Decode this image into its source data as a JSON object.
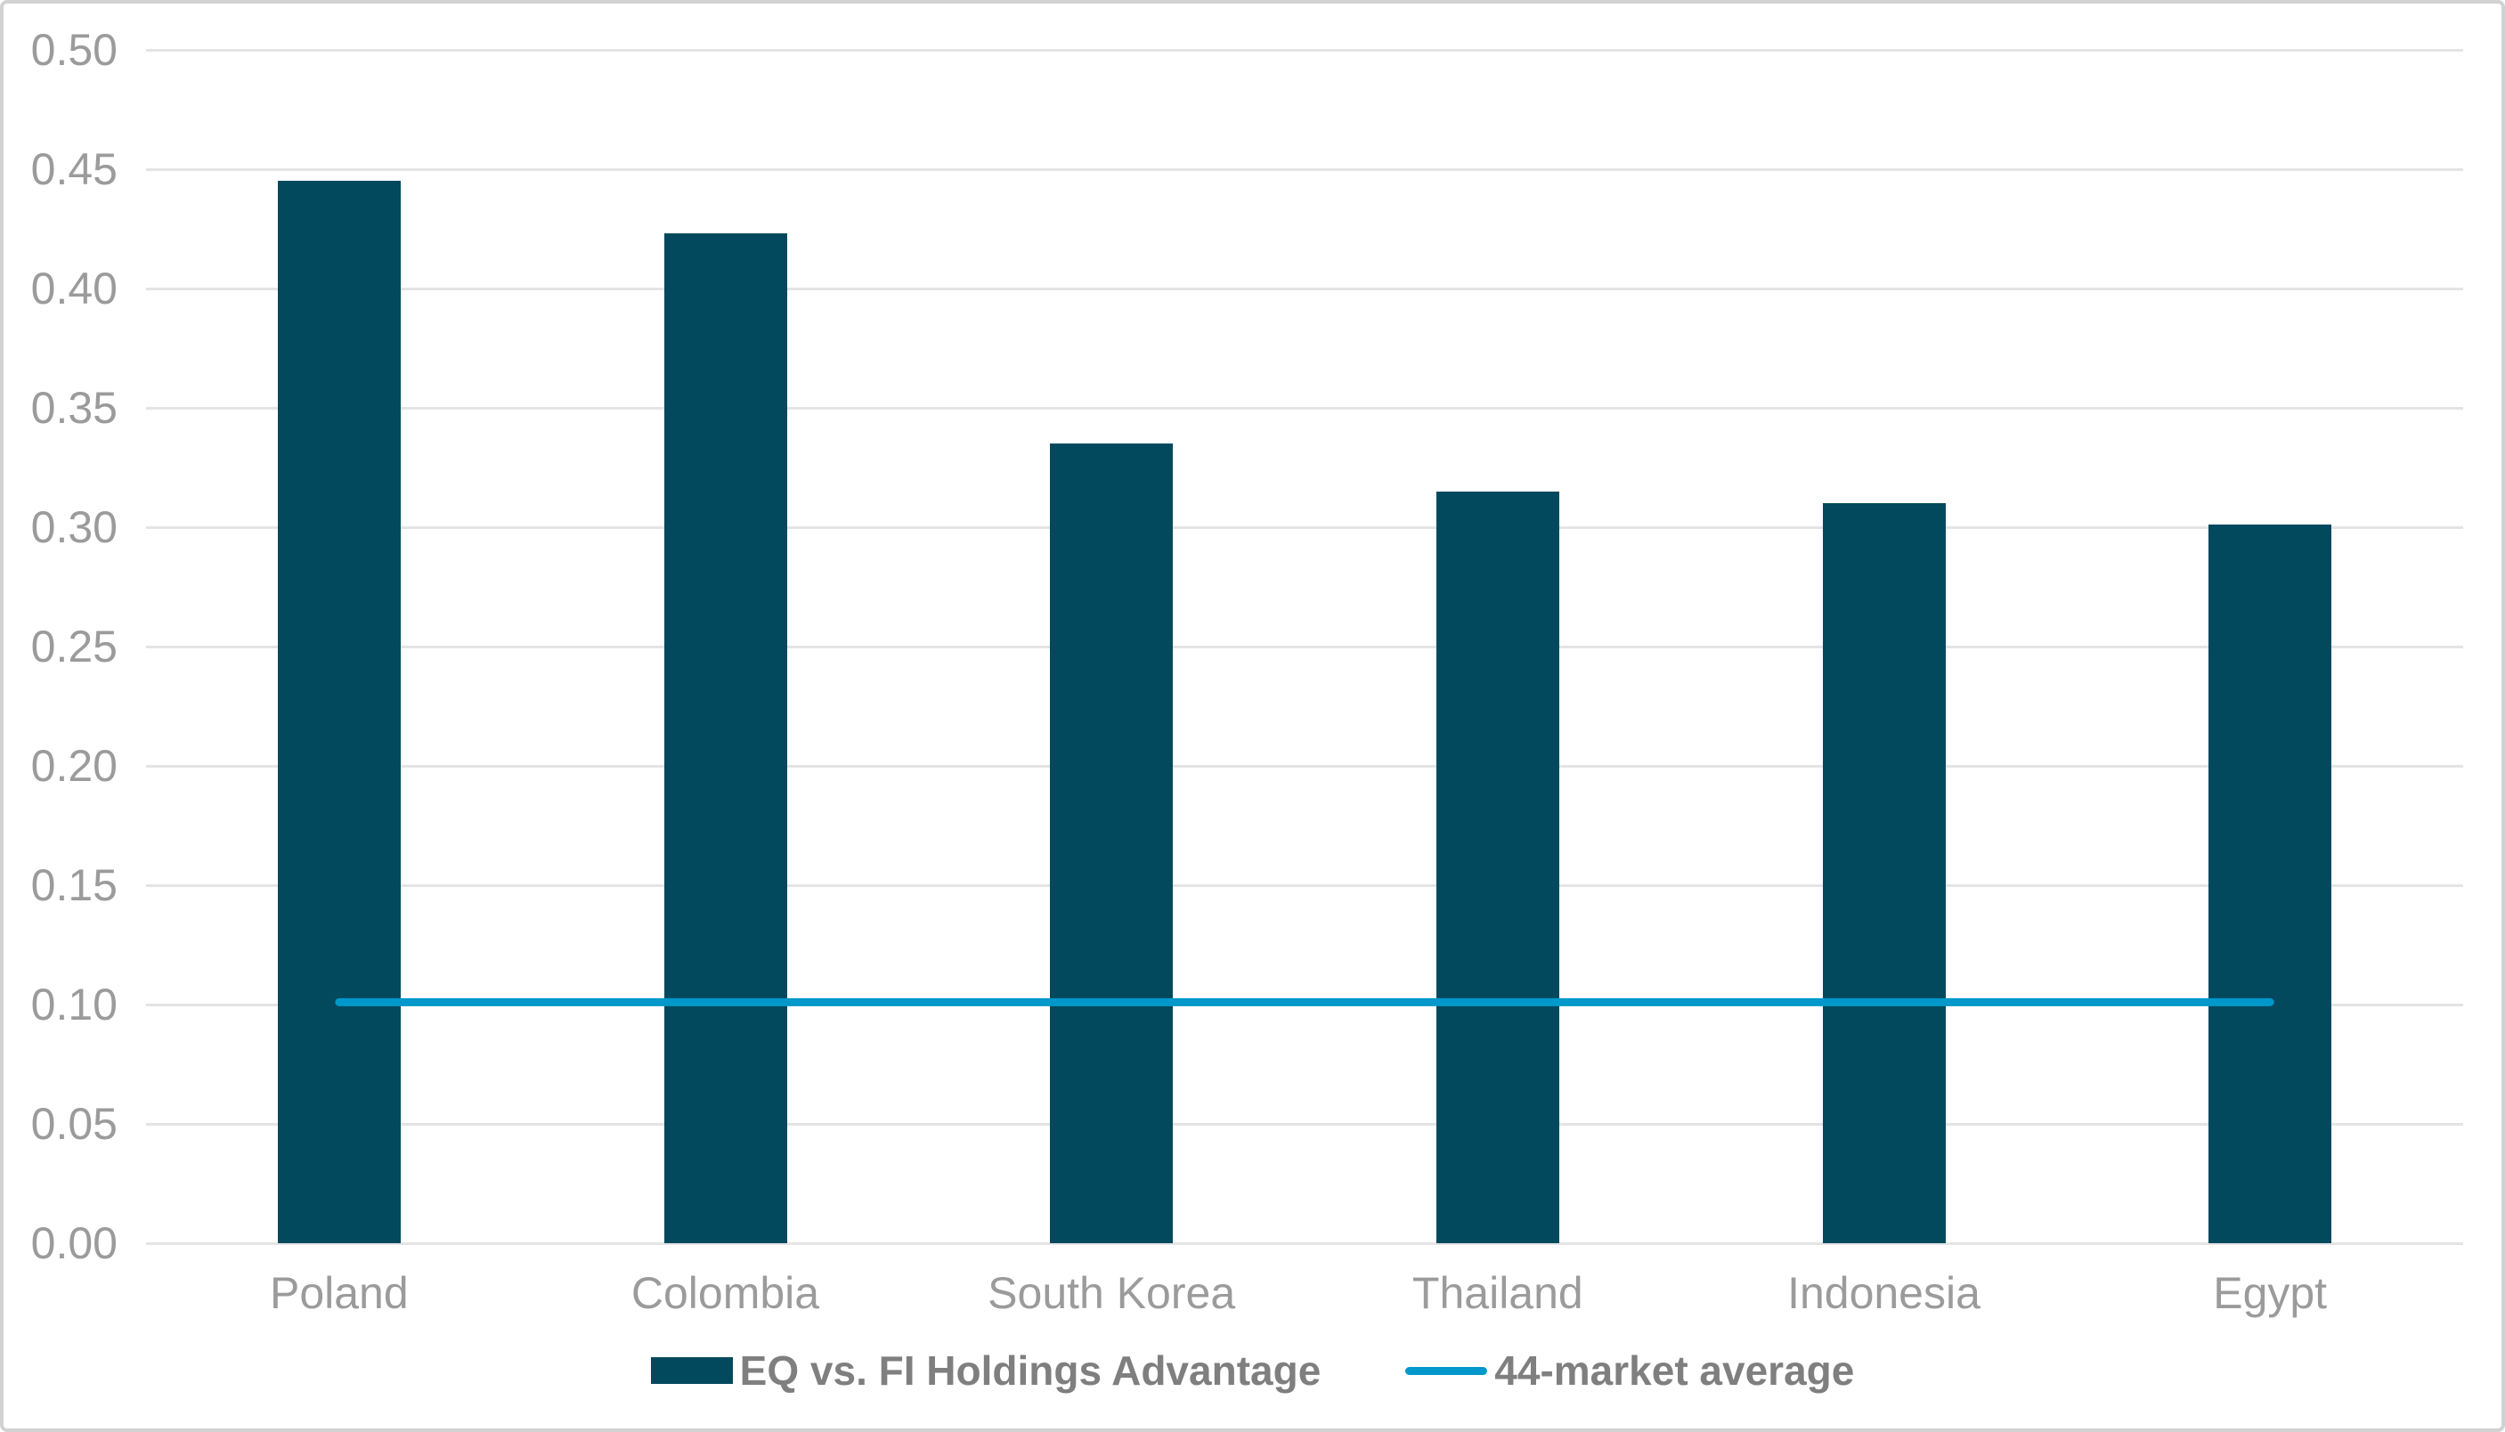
{
  "chart_data": {
    "type": "bar",
    "title": "",
    "xlabel": "",
    "ylabel": "",
    "categories": [
      "Poland",
      "Colombia",
      "South Korea",
      "Thailand",
      "Indonesia",
      "Egypt"
    ],
    "series": [
      {
        "name": "EQ vs. FI Holdings Advantage",
        "type": "bar",
        "values": [
          0.445,
          0.423,
          0.335,
          0.315,
          0.31,
          0.301
        ],
        "color": "#03495E"
      },
      {
        "name": "44-market average",
        "type": "line",
        "values": [
          0.101,
          0.101,
          0.101,
          0.101,
          0.101,
          0.101
        ],
        "color": "#0098CB"
      }
    ],
    "ylim": [
      0.0,
      0.5
    ],
    "ytick_step": 0.05,
    "ytick_labels": [
      "0.00",
      "0.05",
      "0.10",
      "0.15",
      "0.20",
      "0.25",
      "0.30",
      "0.35",
      "0.40",
      "0.45",
      "0.50"
    ],
    "grid": true,
    "legend_position": "bottom"
  },
  "legend": {
    "items": [
      {
        "label": "EQ vs. FI Holdings Advantage",
        "swatch": "bar",
        "color": "#03495E"
      },
      {
        "label": "44-market average",
        "swatch": "line",
        "color": "#0098CB"
      }
    ]
  },
  "colors": {
    "bar_fill": "#03495E",
    "average_line": "#0098CB",
    "gridline": "#E4E4E4",
    "tick_text": "#9B9B9B",
    "legend_text": "#7F7F7F",
    "frame_border": "#D2D2D2",
    "background": "#FFFFFF"
  }
}
